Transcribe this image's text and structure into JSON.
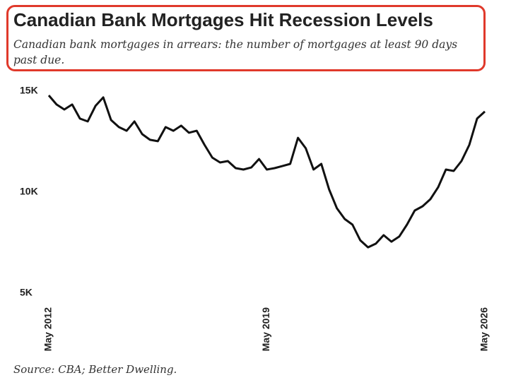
{
  "chart_data": {
    "type": "line",
    "title": "Canadian Bank Mortgages Hit Recession Levels",
    "subtitle": "Canadian bank mortgages in arrears: the number of mortgages at least 90 days past due.",
    "source": "Source: CBA; Better Dwelling.",
    "x": [
      "2012-05",
      "2012-08",
      "2012-11",
      "2013-02",
      "2013-05",
      "2013-08",
      "2013-11",
      "2014-02",
      "2014-05",
      "2014-08",
      "2014-11",
      "2015-02",
      "2015-05",
      "2015-08",
      "2015-11",
      "2016-02",
      "2016-05",
      "2016-08",
      "2016-11",
      "2017-02",
      "2017-05",
      "2017-08",
      "2017-11",
      "2018-02",
      "2018-05",
      "2018-08",
      "2018-11",
      "2019-02",
      "2019-05",
      "2019-08",
      "2019-11",
      "2020-02",
      "2020-05",
      "2020-08",
      "2020-11",
      "2021-02",
      "2021-05",
      "2021-08",
      "2021-11",
      "2022-02",
      "2022-05",
      "2022-08",
      "2022-11",
      "2023-02",
      "2023-05",
      "2023-08",
      "2023-11",
      "2024-02",
      "2024-05",
      "2024-08",
      "2024-11",
      "2025-02",
      "2025-05",
      "2025-08",
      "2025-11",
      "2026-02",
      "2026-05"
    ],
    "series": [
      {
        "name": "Mortgages in arrears",
        "color": "#111111",
        "values": [
          14790,
          14340,
          14090,
          14340,
          13640,
          13500,
          14270,
          14690,
          13570,
          13220,
          13040,
          13500,
          12870,
          12590,
          12520,
          13220,
          13040,
          13290,
          12940,
          13040,
          12340,
          11710,
          11470,
          11540,
          11190,
          11120,
          11220,
          11640,
          11120,
          11190,
          11290,
          11400,
          12690,
          12170,
          11120,
          11400,
          10140,
          9200,
          8670,
          8390,
          7620,
          7270,
          7450,
          7870,
          7550,
          7800,
          8390,
          9090,
          9300,
          9650,
          10240,
          11120,
          11050,
          11540,
          12340,
          13640,
          13990
        ]
      }
    ],
    "xticks": [
      {
        "value": "2012-05",
        "label": "May 2012"
      },
      {
        "value": "2019-05",
        "label": "May 2019"
      },
      {
        "value": "2026-05",
        "label": "May 2026"
      }
    ],
    "ylim": [
      5000,
      15000
    ],
    "yticks": [
      {
        "value": 5000,
        "label": "5K"
      },
      {
        "value": 10000,
        "label": "10K"
      },
      {
        "value": 15000,
        "label": "15K"
      }
    ],
    "grid": false
  }
}
